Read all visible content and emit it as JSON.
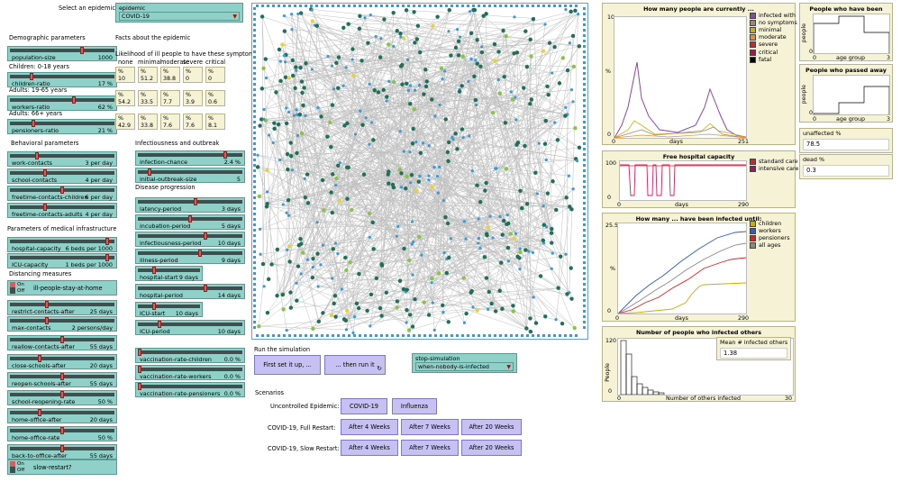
{
  "select_epidemic_label": "Select an epidemic:",
  "epidemic_chooser": {
    "title": "epidemic",
    "value": "COVID-19"
  },
  "demographic_title": "Demographic parameters",
  "facts_title": "Facts about the epidemic",
  "symptoms_title": "Likelihood of ill people to have these symptoms:",
  "symptom_headers": [
    "none",
    "minimal",
    "moderate",
    "severe",
    "critical"
  ],
  "symptom_rows": [
    {
      "group": "Children: 0-18 years",
      "cells": [
        "10",
        "51.2",
        "38.8",
        "0",
        "0"
      ]
    },
    {
      "group": "Adults: 19-65 years",
      "cells": [
        "54.2",
        "33.5",
        "7.7",
        "3.9",
        "0.6"
      ]
    },
    {
      "group": "Adults: 66+ years",
      "cells": [
        "42.9",
        "33.8",
        "7.6",
        "7.6",
        "8.1"
      ]
    }
  ],
  "symptom_cell_title": "%",
  "sliders": {
    "population_size": {
      "name": "population-size",
      "value": "1000",
      "frac": 0.7
    },
    "children_ratio": {
      "name": "children-ratio",
      "value": "17 %",
      "frac": 0.2
    },
    "workers_ratio": {
      "name": "workers-ratio",
      "value": "62 %",
      "frac": 0.62
    },
    "pensioners_ratio": {
      "name": "pensioners-ratio",
      "value": "21 %",
      "frac": 0.21
    },
    "work_contacts": {
      "name": "work-contacts",
      "value": "3 per day",
      "frac": 0.25
    },
    "school_contacts": {
      "name": "school-contacts",
      "value": "4 per day",
      "frac": 0.33
    },
    "freetime_children": {
      "name": "freetime-contacts-children",
      "value": "6 per day",
      "frac": 0.5
    },
    "freetime_adults": {
      "name": "freetime-contacts-adults",
      "value": "4 per day",
      "frac": 0.33
    },
    "hospital_capacity": {
      "name": "hospital-capacity",
      "value": "6 beds per 1000",
      "frac": 0.95
    },
    "icu_capacity": {
      "name": "ICU-capacity",
      "value": "1 beds per 1000",
      "frac": 0.95
    },
    "restrict_contacts_after": {
      "name": "restrict-contacts-after",
      "value": "25 days",
      "frac": 0.35
    },
    "max_contacts": {
      "name": "max-contacts",
      "value": "2 persons/day",
      "frac": 0.35
    },
    "reallow_contacts_after": {
      "name": "reallow-contacts-after",
      "value": "55 days",
      "frac": 0.5
    },
    "close_schools_after": {
      "name": "close-schools-after",
      "value": "20 days",
      "frac": 0.28
    },
    "reopen_schools_after": {
      "name": "reopen-schools-after",
      "value": "55 days",
      "frac": 0.5
    },
    "school_reopening_rate": {
      "name": "school-reopening-rate",
      "value": "50 %",
      "frac": 0.5
    },
    "home_office_after": {
      "name": "home-office-after",
      "value": "20 days",
      "frac": 0.28
    },
    "home_office_rate": {
      "name": "home-office-rate",
      "value": "50 %",
      "frac": 0.5
    },
    "back_to_office_after": {
      "name": "back-to-office-after",
      "value": "55 days",
      "frac": 0.5
    },
    "infection_chance": {
      "name": "infection-chance",
      "value": "2.4 %",
      "frac": 0.85
    },
    "initial_outbreak_size": {
      "name": "initial-outbreak-size",
      "value": "5",
      "frac": 0.1
    },
    "latency_period": {
      "name": "latency-period",
      "value": "3 days",
      "frac": 0.55
    },
    "incubation_period": {
      "name": "incubation-period",
      "value": "5 days",
      "frac": 0.5
    },
    "infectiousness_period": {
      "name": "infectiousness-period",
      "value": "10 days",
      "frac": 0.65
    },
    "illness_period": {
      "name": "illness-period",
      "value": "9 days",
      "frac": 0.6
    },
    "hospital_start": {
      "name": "hospital-start",
      "value": "9 days",
      "frac": 0.25
    },
    "hospital_period": {
      "name": "hospital-period",
      "value": "14 days",
      "frac": 0.65
    },
    "icu_start": {
      "name": "ICU-start",
      "value": "10 days",
      "frac": 0.25
    },
    "icu_period": {
      "name": "ICU-period",
      "value": "10 days",
      "frac": 0.2
    },
    "vacc_children": {
      "name": "vaccination-rate-children",
      "value": "0.0 %",
      "frac": 0.0
    },
    "vacc_workers": {
      "name": "vaccination-rate-workers",
      "value": "0.0 %",
      "frac": 0.0
    },
    "vacc_pensioners": {
      "name": "vaccination-rate-pensioners",
      "value": "0.0 %",
      "frac": 0.0
    }
  },
  "children_label": "Children: 0-18 years",
  "adults_label": "Adults: 19-65 years",
  "adults66_label": "Adults: 66+ years",
  "behavioral_title": "Behavioral parameters",
  "medical_title": "Parameters of medical infrastructure",
  "distancing_title": "Distancing measures",
  "infectiousness_title": "Infectiousness and outbreak",
  "progression_title": "Disease progression",
  "switch_on": "On",
  "switch_off": "Off",
  "switch_ill": "ill-people-stay-at-home",
  "switch_slow": "slow-restart?",
  "run_title": "Run the simulation",
  "setup_btn": "First set it up, ...",
  "go_btn": "... then run it",
  "stop_chooser": {
    "title": "stop-simulation",
    "value": "when-nobody-is-infected"
  },
  "scenarios_title": "Scenarios",
  "uncontrolled_label": "Uncontrolled Epidemic:",
  "full_restart_label": "COVID-19, Full Restart:",
  "slow_restart_label": "COVID-19, Slow Restart:",
  "btn_covid": "COVID-19",
  "btn_influenza": "Influenza",
  "btn_4w": "After 4 Weeks",
  "btn_7w": "After 7 Weeks",
  "btn_20w": "After 20 Weeks",
  "plot1": {
    "title": "How many people are currently ...",
    "ymax": "10",
    "ylabel": "%",
    "xmin": "0",
    "xmax": "251",
    "xlabel": "days",
    "ymin": "0",
    "legend": [
      {
        "name": "infected with",
        "color": "#8e44ad"
      },
      {
        "name": "no symptoms",
        "color": "#a0856a"
      },
      {
        "name": "minimal",
        "color": "#c8b000"
      },
      {
        "name": "moderate",
        "color": "#f08a1c"
      },
      {
        "name": "severe",
        "color": "#e02020"
      },
      {
        "name": "critical",
        "color": "#b01060"
      },
      {
        "name": "fatal",
        "color": "#000000"
      }
    ]
  },
  "plot2": {
    "title": "Free hospital capacity",
    "ymax": "100",
    "ymin": "0",
    "xmin": "0",
    "xmax": "290",
    "xlabel": "days",
    "legend": [
      {
        "name": "standard care",
        "color": "#e02020"
      },
      {
        "name": "intensive care",
        "color": "#b01060"
      }
    ]
  },
  "plot3": {
    "title": "How many ... have been infected until:",
    "ymax": "25.5",
    "ymin": "0",
    "ylabel": "%",
    "xmin": "0",
    "xmax": "290",
    "xlabel": "days",
    "legend": [
      {
        "name": "children",
        "color": "#c8b000"
      },
      {
        "name": "workers",
        "color": "#2b5fc0"
      },
      {
        "name": "pensioners",
        "color": "#e02020"
      },
      {
        "name": "all ages",
        "color": "#888888"
      }
    ]
  },
  "plot4": {
    "title": "Number of people who infected others",
    "ymax": "120",
    "ymin": "0",
    "ylabel": "People",
    "xmin": "0",
    "xmax": "30",
    "xlabel": "Number of others infected"
  },
  "mean_monitor": {
    "title": "Mean # infected others",
    "value": "1.38"
  },
  "plot5": {
    "title": "People who have been infe...",
    "ylabel": "people",
    "xmin": "0",
    "xmax": "3",
    "xlabel": "age group",
    "ymin": "0"
  },
  "plot6": {
    "title": "People who passed away",
    "ylabel": "people",
    "xmin": "0",
    "xmax": "3",
    "xlabel": "age group",
    "ymin": "0"
  },
  "unaffected": {
    "title": "unaffected %",
    "value": "78.5"
  },
  "dead": {
    "title": "dead %",
    "value": "0.3"
  }
}
